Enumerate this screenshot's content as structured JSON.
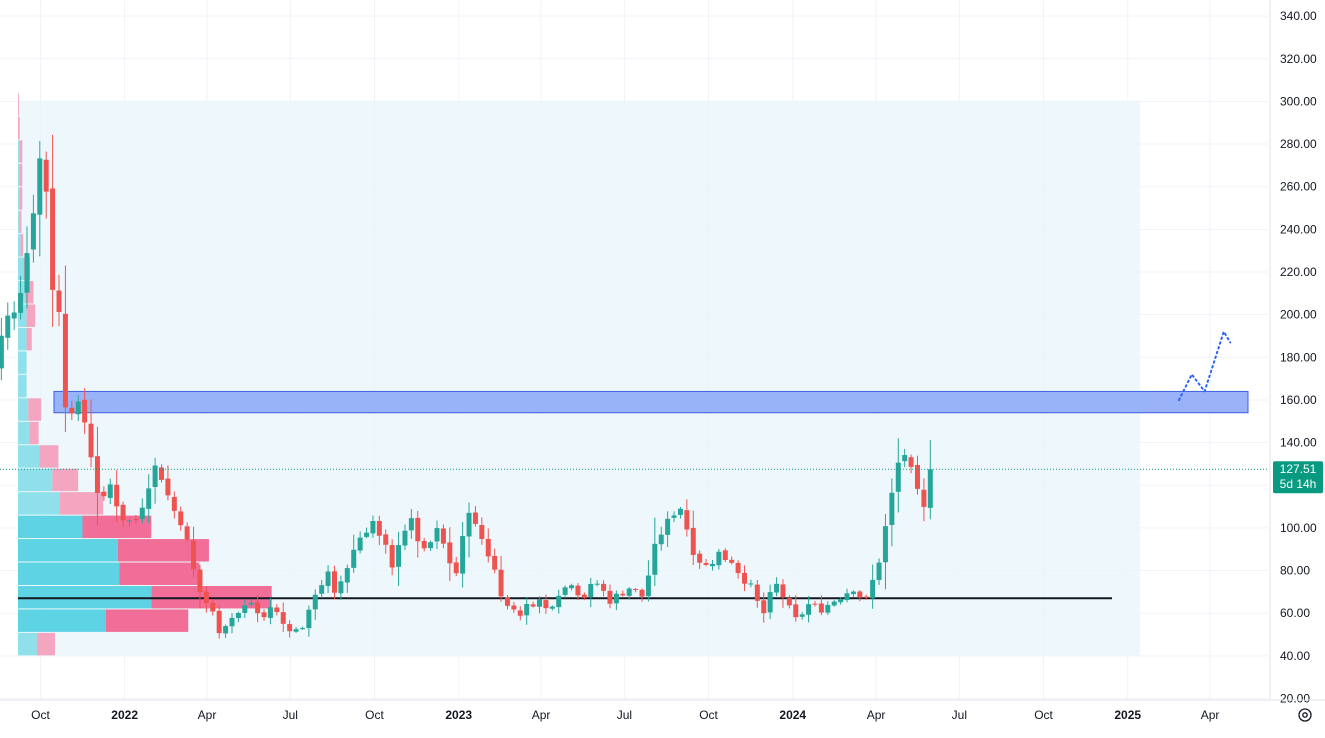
{
  "colors": {
    "up": "#26a69a",
    "down": "#ef5350",
    "vp_up": "#5dd3e3",
    "vp_down": "#f06e98",
    "vp_up_light": "#8fe0ea",
    "vp_down_light": "#f4a6c0",
    "range_bg": "#e8f6fb",
    "zone_fill": "#8fabf7",
    "zone_stroke": "#3d5fe0",
    "projection": "#2962ff",
    "poc": "#131722",
    "axis_text": "#131722",
    "grid": "#f0f3fa",
    "price_badge_bg": "#089981",
    "price_badge_text": "#ffffff"
  },
  "price_axis": {
    "labels": [
      "340.00",
      "320.00",
      "300.00",
      "280.00",
      "260.00",
      "240.00",
      "220.00",
      "200.00",
      "180.00",
      "160.00",
      "140.00",
      "120.00",
      "100.00",
      "80.00",
      "60.00",
      "40.00",
      "20.00"
    ]
  },
  "time_axis": {
    "labels": [
      {
        "text": "Oct",
        "bold": false
      },
      {
        "text": "2022",
        "bold": true
      },
      {
        "text": "Apr",
        "bold": false
      },
      {
        "text": "Jul",
        "bold": false
      },
      {
        "text": "Oct",
        "bold": false
      },
      {
        "text": "2023",
        "bold": true
      },
      {
        "text": "Apr",
        "bold": false
      },
      {
        "text": "Jul",
        "bold": false
      },
      {
        "text": "Oct",
        "bold": false
      },
      {
        "text": "2024",
        "bold": true
      },
      {
        "text": "Apr",
        "bold": false
      },
      {
        "text": "Jul",
        "bold": false
      },
      {
        "text": "Oct",
        "bold": false
      },
      {
        "text": "2025",
        "bold": true
      },
      {
        "text": "Apr",
        "bold": false
      }
    ]
  },
  "current_price": {
    "value": "127.51",
    "countdown": "5d 14h"
  },
  "settings_icon": "gear-icon",
  "chart_data": {
    "type": "candlestick",
    "interval": "1W",
    "y_range": [
      20,
      340
    ],
    "current_price": 127.51,
    "support_level": 67,
    "resistance_zone": [
      154,
      164
    ],
    "candles": [],
    "volume_profile": [],
    "projection_path": []
  }
}
